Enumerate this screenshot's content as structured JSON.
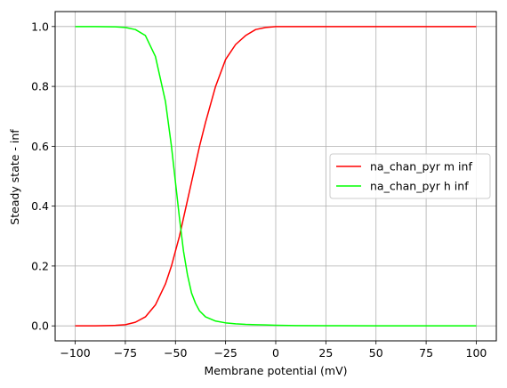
{
  "chart_data": {
    "type": "line",
    "xlabel": "Membrane potential (mV)",
    "ylabel": "Steady state - inf",
    "xlim": [
      -110,
      110
    ],
    "ylim": [
      -0.05,
      1.05
    ],
    "xticks": [
      -100,
      -75,
      -50,
      -25,
      0,
      25,
      50,
      75,
      100
    ],
    "yticks": [
      0.0,
      0.2,
      0.4,
      0.6,
      0.8,
      1.0
    ],
    "xtick_labels": [
      "−100",
      "−75",
      "−50",
      "−25",
      "0",
      "25",
      "50",
      "75",
      "100"
    ],
    "ytick_labels": [
      "0.0",
      "0.2",
      "0.4",
      "0.6",
      "0.8",
      "1.0"
    ],
    "grid": true,
    "legend_position": "center-right",
    "x": [
      -100,
      -90,
      -80,
      -75,
      -70,
      -65,
      -60,
      -55,
      -52,
      -50,
      -48,
      -46,
      -44,
      -42,
      -40,
      -38,
      -35,
      -30,
      -25,
      -20,
      -15,
      -10,
      -5,
      0,
      10,
      25,
      50,
      75,
      100
    ],
    "series": [
      {
        "name": "na_chan_pyr m inf",
        "color": "#ff0000",
        "values": [
          0.0,
          0.0002,
          0.0015,
          0.004,
          0.012,
          0.03,
          0.07,
          0.14,
          0.2,
          0.25,
          0.3,
          0.36,
          0.42,
          0.48,
          0.54,
          0.6,
          0.68,
          0.8,
          0.89,
          0.94,
          0.97,
          0.99,
          0.997,
          1.0,
          1.0,
          1.0,
          1.0,
          1.0,
          1.0
        ]
      },
      {
        "name": "na_chan_pyr h inf",
        "color": "#00ff00",
        "values": [
          1.0,
          1.0,
          0.999,
          0.997,
          0.99,
          0.97,
          0.9,
          0.75,
          0.6,
          0.48,
          0.36,
          0.25,
          0.17,
          0.11,
          0.075,
          0.05,
          0.03,
          0.016,
          0.01,
          0.007,
          0.005,
          0.004,
          0.003,
          0.002,
          0.001,
          0.0005,
          0.0,
          0.0,
          0.0
        ]
      }
    ]
  }
}
